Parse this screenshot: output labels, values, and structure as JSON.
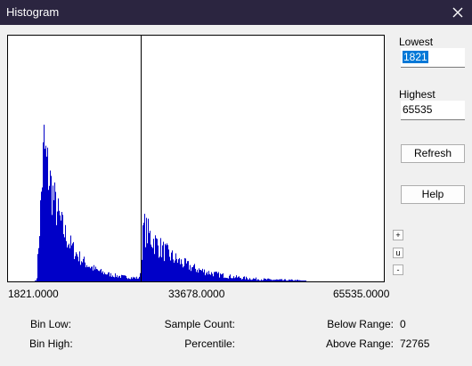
{
  "window": {
    "title": "Histogram",
    "close_icon": "close-icon"
  },
  "fields": {
    "lowest_label": "Lowest",
    "lowest_value": "1821",
    "highest_label": "Highest",
    "highest_value": "65535"
  },
  "buttons": {
    "refresh": "Refresh",
    "help": "Help",
    "zoom_in": "+",
    "unzoom": "u",
    "zoom_out": "-"
  },
  "axis": {
    "min": "1821.0000",
    "mid": "33678.0000",
    "max": "65535.0000"
  },
  "stats": {
    "bin_low_label": "Bin Low:",
    "bin_high_label": "Bin High:",
    "sample_count_label": "Sample Count:",
    "percentile_label": "Percentile:",
    "below_range_label": "Below Range:",
    "below_range_value": "0",
    "above_range_label": "Above Range:",
    "above_range_value": "72765"
  },
  "colors": {
    "bars": "#0000c8",
    "titlebar": "#2b2540",
    "selection": "#0078d7"
  }
}
